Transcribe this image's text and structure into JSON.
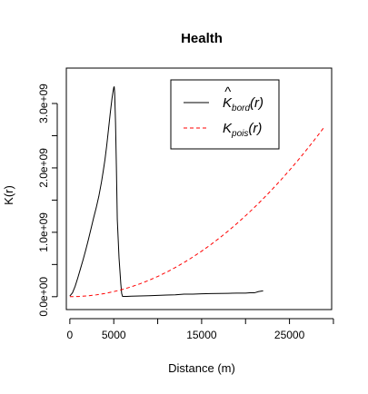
{
  "chart_data": {
    "type": "line",
    "title": "Health",
    "xlabel": "Distance (m)",
    "ylabel": "K(r)",
    "xlim": [
      -400,
      29800
    ],
    "ylim": [
      -200000000,
      3550000000
    ],
    "x_ticks": [
      0,
      5000,
      15000,
      25000
    ],
    "x_tick_marks": [
      0,
      5000,
      10000,
      15000,
      20000,
      25000,
      30000
    ],
    "y_ticks": [
      {
        "value": 0,
        "label": "0.0e+00"
      },
      {
        "value": 1000000000,
        "label": "1.0e+09"
      },
      {
        "value": 2000000000,
        "label": "2.0e+09"
      },
      {
        "value": 3000000000,
        "label": "3.0e+09"
      }
    ],
    "y_tick_marks": [
      0,
      500000000,
      1000000000,
      1500000000,
      2000000000,
      2500000000,
      3000000000
    ],
    "legend": {
      "position": "top-right",
      "entries": [
        {
          "symbol": "K",
          "hat": true,
          "subscript": "bord",
          "suffix": "(r)",
          "color": "#000000",
          "dash": "solid"
        },
        {
          "symbol": "K",
          "hat": false,
          "subscript": "pois",
          "suffix": "(r)",
          "color": "#ff0000",
          "dash": "dashed"
        }
      ]
    },
    "series": [
      {
        "name": "K_bord(r)",
        "color": "#000000",
        "dash": "solid",
        "x": [
          0,
          300,
          600,
          900,
          1200,
          1500,
          1800,
          2100,
          2400,
          2700,
          3000,
          3300,
          3600,
          3800,
          4000,
          4200,
          4400,
          4600,
          4800,
          4900,
          5000,
          5050,
          5100,
          5200,
          5300,
          5350,
          5400,
          5500,
          5600,
          5700,
          5800,
          5900,
          6000,
          6500,
          7000,
          8000,
          9000,
          10000,
          11000,
          12000,
          13000,
          14000,
          15000,
          16000,
          17000,
          18000,
          19000,
          20000,
          20500,
          21000,
          21500,
          22000
        ],
        "y": [
          10000000,
          60000000,
          160000000,
          290000000,
          430000000,
          570000000,
          720000000,
          880000000,
          1050000000,
          1220000000,
          1380000000,
          1560000000,
          1780000000,
          1950000000,
          2130000000,
          2350000000,
          2600000000,
          2850000000,
          3080000000,
          3170000000,
          3250000000,
          3260000000,
          3170000000,
          2700000000,
          2000000000,
          1600000000,
          1200000000,
          900000000,
          600000000,
          400000000,
          200000000,
          50000000,
          5000000,
          5000000,
          8000000,
          12000000,
          15000000,
          20000000,
          25000000,
          30000000,
          40000000,
          40000000,
          45000000,
          48000000,
          50000000,
          52000000,
          55000000,
          55000000,
          60000000,
          60000000,
          80000000,
          90000000
        ]
      },
      {
        "name": "K_pois(r)",
        "color": "#ff0000",
        "dash": "dashed",
        "x": [
          0,
          1000,
          2000,
          3000,
          4000,
          5000,
          6000,
          7000,
          8000,
          9000,
          10000,
          11000,
          12000,
          13000,
          14000,
          15000,
          16000,
          17000,
          18000,
          19000,
          20000,
          21000,
          22000,
          23000,
          24000,
          25000,
          26000,
          27000,
          28000,
          29000
        ],
        "y": [
          0,
          3140000,
          12570000,
          28270000,
          50270000,
          78540000,
          113100000,
          153900000,
          201100000,
          254500000,
          314200000,
          380100000,
          452400000,
          530900000,
          615800000,
          706900000,
          804200000,
          907900000,
          1017900000,
          1134100000,
          1256600000,
          1385400000,
          1520500000,
          1661900000,
          1809600000,
          1963500000,
          2123700000,
          2290200000,
          2463000000,
          2642100000
        ]
      }
    ]
  }
}
